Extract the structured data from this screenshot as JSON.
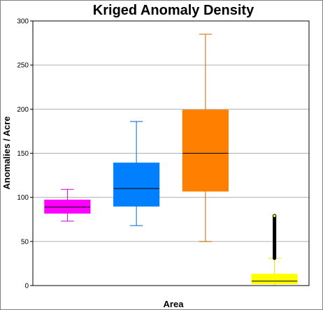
{
  "chart_data": {
    "type": "box",
    "title": "Kriged Anomaly Density",
    "xlabel": "Area",
    "ylabel": "Anomalies / Acre",
    "ylim": [
      0,
      300
    ],
    "yticks": [
      "0",
      "50",
      "100",
      "150",
      "200",
      "250",
      "300"
    ],
    "grid": true,
    "legend": "none",
    "series": [
      {
        "color": "#ff00ff",
        "whisker_color": "#cc00cc",
        "min": 73,
        "q1": 82,
        "median": 89,
        "q3": 97,
        "max": 109,
        "outliers": []
      },
      {
        "color": "#0080ff",
        "whisker_color": "#0066cc",
        "min": 68,
        "q1": 90,
        "median": 110,
        "q3": 139,
        "max": 186,
        "outliers": []
      },
      {
        "color": "#ff8000",
        "whisker_color": "#cc6600",
        "min": 50,
        "q1": 107,
        "median": 150,
        "q3": 199,
        "max": 285,
        "outliers": []
      },
      {
        "color": "#ffff00",
        "whisker_color": "#e6e600",
        "min": 0,
        "q1": 2,
        "median": 5,
        "q3": 13,
        "max": 31,
        "outliers_range": [
          31,
          79
        ]
      }
    ]
  }
}
